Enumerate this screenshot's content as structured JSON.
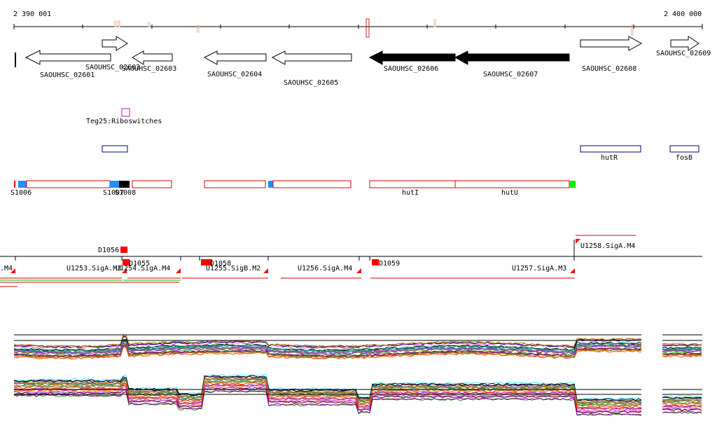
{
  "axis": {
    "start_label": "2 390 001",
    "end_label": "2 400 000"
  },
  "colors": {
    "gene_outline": "#000000",
    "gene_fill_selected": "#000000",
    "rna_outline": "#cc00cc",
    "box_outline": "#000080",
    "segment_outline": "#dd0000",
    "marker_blue": "#1e90ff",
    "marker_green": "#00ee00",
    "marker_red": "#ff0000"
  },
  "genes": [
    {
      "id": "g0",
      "label": "SAOUHSC_02601",
      "strand": "-",
      "filled": false
    },
    {
      "id": "g1",
      "label": "SAOUHSC_02602",
      "strand": "+",
      "filled": false
    },
    {
      "id": "g2",
      "label": "SAOUHSC_02603",
      "strand": "-",
      "filled": false
    },
    {
      "id": "g3",
      "label": "SAOUHSC_02604",
      "strand": "-",
      "filled": false
    },
    {
      "id": "g4",
      "label": "SAOUHSC_02605",
      "strand": "-",
      "filled": false
    },
    {
      "id": "g5",
      "label": "SAOUHSC_02606",
      "strand": "-",
      "filled": true
    },
    {
      "id": "g6",
      "label": "SAOUHSC_02607",
      "strand": "-",
      "filled": true
    },
    {
      "id": "g7",
      "label": "SAOUHSC_02608",
      "strand": "+",
      "filled": false
    },
    {
      "id": "g8",
      "label": "SAOUHSC_02609",
      "strand": "+",
      "filled": false
    }
  ],
  "riboswitch": {
    "label": "Teg25:Riboswitches"
  },
  "boxes": [
    {
      "label": ""
    },
    {
      "label": "hutR"
    },
    {
      "label": "fosB"
    }
  ],
  "segments_row": {
    "labels": [
      "S1006",
      "S1007",
      "S1008",
      "hutI",
      "hutU"
    ]
  },
  "promoters": {
    "labels": [
      "U1253.SigA.M3",
      "U1254.SigA.M4",
      "U1255.SigB.M2",
      "U1256.SigA.M4",
      "U1257.SigA.M3",
      "U1258.SigA.M4",
      ".M4"
    ],
    "d_labels": [
      "D1056",
      "D1055",
      "D1058",
      "D1059"
    ]
  }
}
